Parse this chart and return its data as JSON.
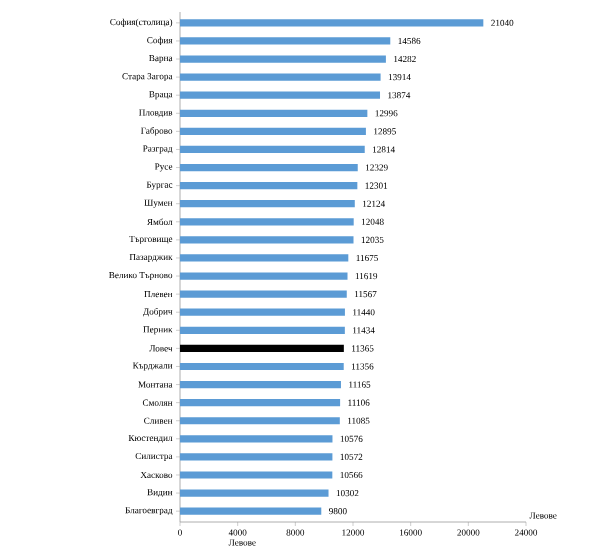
{
  "chart_data": {
    "type": "bar",
    "orientation": "horizontal",
    "xlabel": "Левове",
    "annotations": [
      "Левове"
    ],
    "categories": [
      "София(столица)",
      "София",
      "Варна",
      "Стара Загора",
      "Враца",
      "Пловдив",
      "Габрово",
      "Разград",
      "Русе",
      "Бургас",
      "Шумен",
      "Ямбол",
      "Търговище",
      "Пазарджик",
      "Велико Търново",
      "Плевен",
      "Добрич",
      "Перник",
      "Ловеч",
      "Кърджали",
      "Монтана",
      "Смолян",
      "Сливен",
      "Кюстендил",
      "Силистра",
      "Хасково",
      "Видин",
      "Благоевград"
    ],
    "values": [
      21040,
      14586,
      14282,
      13914,
      13874,
      12996,
      12895,
      12814,
      12329,
      12301,
      12124,
      12048,
      12035,
      11675,
      11619,
      11567,
      11440,
      11434,
      11365,
      11356,
      11165,
      11106,
      11085,
      10576,
      10572,
      10566,
      10302,
      9800
    ],
    "colors": [
      "#5b9bd5",
      "#5b9bd5",
      "#5b9bd5",
      "#5b9bd5",
      "#5b9bd5",
      "#5b9bd5",
      "#5b9bd5",
      "#5b9bd5",
      "#5b9bd5",
      "#5b9bd5",
      "#5b9bd5",
      "#5b9bd5",
      "#5b9bd5",
      "#5b9bd5",
      "#5b9bd5",
      "#5b9bd5",
      "#5b9bd5",
      "#5b9bd5",
      "#000000",
      "#5b9bd5",
      "#5b9bd5",
      "#5b9bd5",
      "#5b9bd5",
      "#5b9bd5",
      "#5b9bd5",
      "#5b9bd5",
      "#5b9bd5",
      "#5b9bd5"
    ],
    "xlim": [
      0,
      24000
    ],
    "xticks": [
      0,
      4000,
      8000,
      12000,
      16000,
      20000,
      24000
    ],
    "data_labels": true,
    "grid": false
  }
}
